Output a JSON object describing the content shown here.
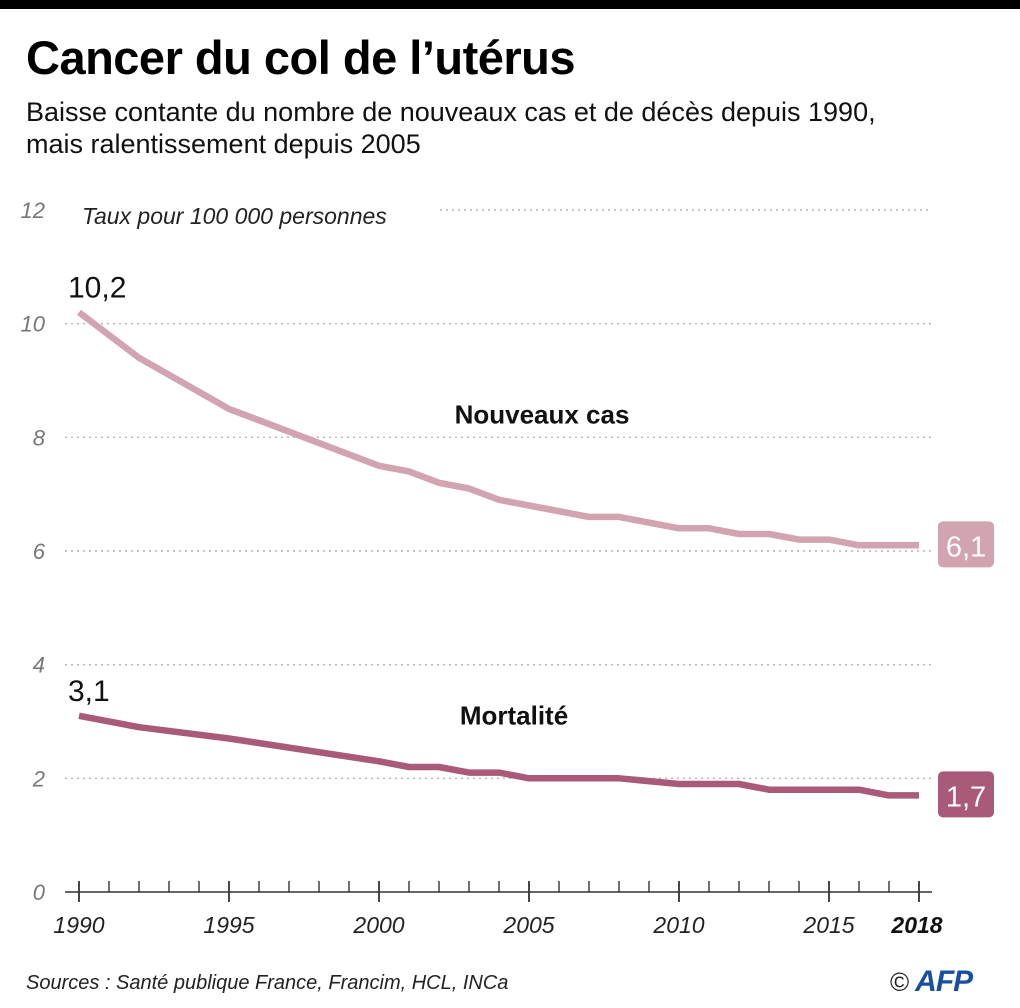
{
  "header": {
    "title": "Cancer du col de l’utérus",
    "subtitle_line1": "Baisse contante du nombre de nouveaux cas et de décès depuis 1990,",
    "subtitle_line2": "mais ralentissement depuis 2005"
  },
  "chart_data": {
    "type": "line",
    "ylabel": "Taux pour 100 000 personnes",
    "ylim": [
      0,
      12
    ],
    "yticks": [
      "0",
      "2",
      "4",
      "6",
      "8",
      "10",
      "12"
    ],
    "xlim": [
      1990,
      2018
    ],
    "xtick_labels": [
      "1990",
      "1995",
      "2000",
      "2005",
      "2010",
      "2015",
      "2018"
    ],
    "grid": "horizontal dotted",
    "x": [
      1990,
      1992,
      1995,
      2000,
      2001,
      2002,
      2003,
      2004,
      2005,
      2007,
      2008,
      2010,
      2011,
      2012,
      2013,
      2014,
      2015,
      2016,
      2017,
      2018
    ],
    "series": [
      {
        "name": "Nouveaux cas",
        "color": "#d2a3b1",
        "values": [
          10.2,
          9.4,
          8.5,
          7.5,
          7.4,
          7.2,
          7.1,
          6.9,
          6.8,
          6.6,
          6.6,
          6.4,
          6.4,
          6.3,
          6.3,
          6.2,
          6.2,
          6.1,
          6.1,
          6.1
        ],
        "start_label": "10,2",
        "end_label": "6,1"
      },
      {
        "name": "Mortalité",
        "color": "#a85a78",
        "values": [
          3.1,
          2.9,
          2.7,
          2.3,
          2.2,
          2.2,
          2.1,
          2.1,
          2.0,
          2.0,
          2.0,
          1.9,
          1.9,
          1.9,
          1.8,
          1.8,
          1.8,
          1.8,
          1.7,
          1.7
        ],
        "start_label": "3,1",
        "end_label": "1,7"
      }
    ]
  },
  "footer": {
    "sources": "Sources : Santé publique France, Francim, HCL, INCa",
    "copyright": "©",
    "logo_text": "AFP"
  }
}
